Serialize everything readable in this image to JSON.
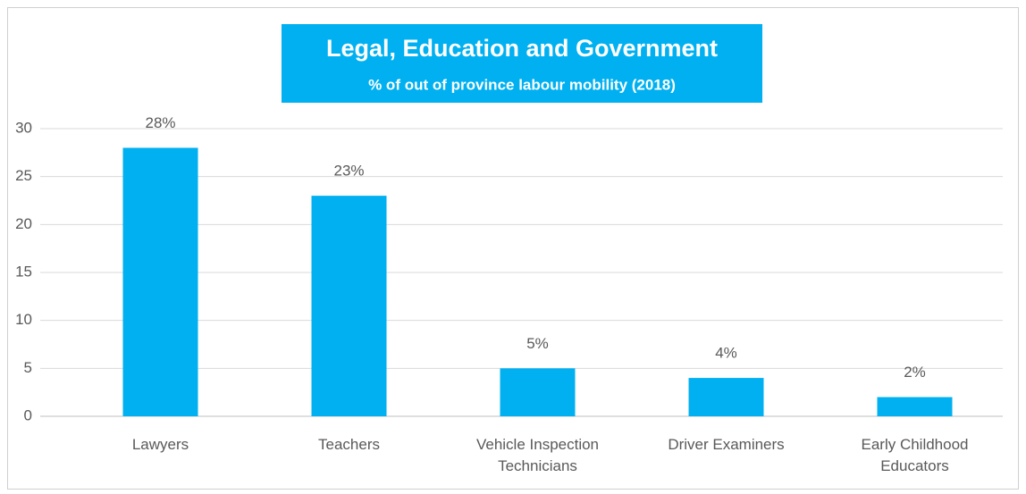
{
  "chart_data": {
    "type": "bar",
    "title": "Legal, Education and Government",
    "subtitle": "% of out of province labour mobility (2018)",
    "categories": [
      "Lawyers",
      "Teachers",
      "Vehicle Inspection Technicians",
      "Driver Examiners",
      "Early Childhood Educators"
    ],
    "values": [
      28,
      23,
      5,
      4,
      2
    ],
    "value_labels": [
      "28%",
      "23%",
      "5%",
      "4%",
      "2%"
    ],
    "color": "#00b0f0",
    "ylim": [
      0,
      30
    ],
    "yticks": [
      0,
      5,
      10,
      15,
      20,
      25,
      30
    ],
    "grid": true
  }
}
